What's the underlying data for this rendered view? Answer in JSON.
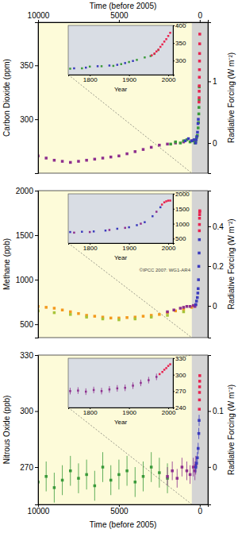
{
  "chart_data": [
    {
      "type": "scatter",
      "xlabel": "Time (before 2005)",
      "ylabel": "Carbon Dioxide (ppm)",
      "y2label": "Radiative Forcing (W m⁻²)",
      "xlim": [
        10000,
        -500
      ],
      "xticks": [
        10000,
        5000,
        0
      ],
      "ylim": [
        250,
        390
      ],
      "yticks": [
        300,
        350
      ],
      "y2lim": [
        -0.49,
        1.96
      ],
      "y2ticks": [
        0,
        1
      ],
      "series": [
        {
          "color": "#8e2f8e",
          "marker": "square",
          "x": [
            10000,
            9500,
            9000,
            8500,
            8000,
            7500,
            7000,
            6500,
            6000,
            5500,
            5000,
            4500,
            4000,
            3500,
            3000,
            2500,
            2000,
            1500,
            1000,
            500
          ],
          "values": [
            266,
            264,
            262,
            261,
            260,
            261,
            262,
            263,
            264,
            265,
            266,
            268,
            270,
            272,
            274,
            276,
            277,
            278,
            279,
            280
          ]
        },
        {
          "color": "#3a9a3a",
          "marker": "square",
          "x": [
            1800,
            1500,
            1200,
            1000,
            800,
            600,
            400,
            300,
            250,
            200,
            150,
            100,
            80,
            60,
            50,
            40,
            30
          ],
          "values": [
            277,
            279,
            278,
            280,
            281,
            279,
            280,
            278,
            279,
            283,
            285,
            292,
            297,
            305,
            311,
            318,
            330
          ]
        },
        {
          "color": "#3b3bbd",
          "marker": "square",
          "x": [
            900,
            700,
            500,
            350,
            255,
            220,
            180,
            140,
            110,
            90
          ],
          "values": [
            280,
            282,
            280,
            281,
            278,
            281,
            284,
            288,
            296,
            300
          ]
        },
        {
          "color": "#e8244f",
          "marker": "square",
          "x": [
            47,
            40,
            35,
            30,
            25,
            20,
            15,
            10,
            5,
            0
          ],
          "values": [
            316,
            320,
            326,
            331,
            339,
            346,
            354,
            361,
            370,
            379
          ]
        }
      ],
      "inset": {
        "type": "scatter",
        "xlabel": "Year",
        "xlim": [
          1745,
          2012
        ],
        "xticks": [
          1800,
          1900,
          2000
        ],
        "ylim": [
          260,
          400
        ],
        "yticks": [
          300,
          350,
          400
        ],
        "series": [
          {
            "color": "#3a9a3a",
            "marker": "square",
            "x": [
              1750,
              1780,
              1800,
              1830,
              1860,
              1880,
              1900,
              1920,
              1940,
              1955,
              1965,
              1975
            ],
            "values": [
              277,
              278,
              283,
              284,
              285,
              290,
              296,
              302,
              309,
              313,
              319,
              330
            ]
          },
          {
            "color": "#3b3bbd",
            "marker": "square",
            "x": [
              1760,
              1790,
              1820,
              1850,
              1870,
              1890,
              1910
            ],
            "values": [
              278,
              280,
              284,
              286,
              288,
              293,
              299
            ]
          },
          {
            "color": "#e8244f",
            "marker": "square",
            "x": [
              1958,
              1965,
              1970,
              1975,
              1980,
              1985,
              1990,
              1995,
              2000,
              2005
            ],
            "values": [
              315,
              320,
              326,
              331,
              339,
              346,
              354,
              361,
              370,
              379
            ]
          }
        ]
      }
    },
    {
      "type": "scatter",
      "ylabel": "Methane (ppb)",
      "y2label": "Radiative Forcing (W m⁻²)",
      "annotations": [
        "©IPCC 2007: WG1-AR4"
      ],
      "xlim": [
        10000,
        -500
      ],
      "ylim": [
        350,
        2000
      ],
      "yticks": [
        500,
        1000,
        1500,
        2000
      ],
      "y2lim": [
        -0.16,
        0.58
      ],
      "y2ticks": [
        0,
        0.2,
        0.4
      ],
      "series": [
        {
          "color": "#f39a1e",
          "marker": "square",
          "x": [
            10000,
            9500,
            9000,
            8500,
            8000,
            7500,
            7000,
            6500,
            6000,
            5500,
            5000,
            4500,
            4000,
            3500,
            3000,
            2500,
            2000,
            1500,
            1000,
            500
          ],
          "values": [
            700,
            690,
            680,
            660,
            640,
            620,
            600,
            590,
            580,
            570,
            570,
            575,
            580,
            590,
            600,
            610,
            630,
            650,
            670,
            690
          ]
        },
        {
          "color": "#a8c43a",
          "marker": "square",
          "x": [
            10000,
            9000,
            8000,
            7000,
            6000,
            5000,
            4000,
            3000,
            2000,
            1000
          ],
          "values": [
            650,
            630,
            610,
            580,
            560,
            550,
            560,
            580,
            600,
            640
          ]
        },
        {
          "color": "#8e2f8e",
          "marker": "square",
          "x": [
            2000,
            1600,
            1200,
            1000,
            800,
            600,
            400,
            300,
            250
          ],
          "values": [
            640,
            660,
            680,
            690,
            700,
            700,
            710,
            700,
            720
          ]
        },
        {
          "color": "#3b3bbd",
          "marker": "square",
          "x": [
            250,
            200,
            150,
            120,
            100,
            80,
            60,
            40,
            25
          ],
          "values": [
            720,
            760,
            800,
            850,
            900,
            1000,
            1150,
            1300,
            1450
          ]
        },
        {
          "color": "#e8244f",
          "marker": "square",
          "x": [
            25,
            20,
            15,
            10,
            5,
            0
          ],
          "values": [
            1550,
            1620,
            1690,
            1730,
            1760,
            1774
          ]
        }
      ],
      "inset": {
        "type": "scatter",
        "xlabel": "Year",
        "xlim": [
          1745,
          2012
        ],
        "xticks": [
          1800,
          1900,
          2000
        ],
        "ylim": [
          350,
          2000
        ],
        "yticks": [
          500,
          1000,
          1500,
          2000
        ],
        "series": [
          {
            "color": "#3b3bbd",
            "marker": "square",
            "x": [
              1750,
              1780,
              1810,
              1840,
              1870,
              1900,
              1920,
              1940,
              1960,
              1980
            ],
            "values": [
              720,
              730,
              740,
              770,
              830,
              880,
              950,
              1050,
              1250,
              1550
            ]
          },
          {
            "color": "#8e2f8e",
            "marker": "square",
            "x": [
              1760,
              1800,
              1850,
              1890,
              1930,
              1970
            ],
            "values": [
              700,
              720,
              790,
              860,
              1000,
              1400
            ]
          },
          {
            "color": "#e8244f",
            "marker": "square",
            "x": [
              1984,
              1990,
              1995,
              2000,
              2005
            ],
            "values": [
              1640,
              1715,
              1750,
              1772,
              1774
            ]
          }
        ]
      }
    },
    {
      "type": "scatter",
      "xlabel": "Time (before 2005)",
      "ylabel": "Nitrous Oxide (ppb)",
      "y2label": "Radiative Forcing (W m⁻²)",
      "xlim": [
        10000,
        -500
      ],
      "xticks": [
        10000,
        5000,
        0
      ],
      "ylim": [
        250,
        330
      ],
      "yticks": [
        270,
        300,
        330
      ],
      "y2lim": [
        -0.067,
        0.2
      ],
      "y2ticks": [
        0,
        0.1
      ],
      "series": [
        {
          "color": "#3a9a3a",
          "marker": "square",
          "x": [
            10000,
            9500,
            9000,
            8500,
            8000,
            7500,
            7000,
            6500,
            6000,
            5500,
            5000,
            4500,
            4000,
            3500,
            3000,
            2500,
            2000
          ],
          "values": [
            262,
            265,
            259,
            263,
            268,
            264,
            266,
            260,
            270,
            263,
            266,
            268,
            262,
            265,
            270,
            267,
            264
          ],
          "errors": [
            8,
            8,
            8,
            8,
            8,
            8,
            8,
            8,
            8,
            8,
            8,
            8,
            8,
            8,
            8,
            8,
            8
          ]
        },
        {
          "color": "#8e2f8e",
          "marker": "square",
          "x": [
            2000,
            1700,
            1400,
            1100,
            800,
            600,
            400,
            300,
            250
          ],
          "values": [
            265,
            268,
            264,
            270,
            268,
            266,
            270,
            268,
            271
          ],
          "errors": [
            5,
            5,
            5,
            5,
            5,
            5,
            5,
            5,
            5
          ]
        },
        {
          "color": "#3b3bbd",
          "marker": "square",
          "x": [
            250,
            200,
            150,
            100,
            60,
            40
          ],
          "values": [
            270,
            272,
            275,
            280,
            288,
            295
          ],
          "errors": [
            3,
            3,
            3,
            3,
            3,
            3
          ]
        },
        {
          "color": "#e8244f",
          "marker": "square",
          "x": [
            27,
            20,
            15,
            10,
            5,
            0
          ],
          "values": [
            301,
            306,
            310,
            313,
            316,
            319
          ]
        }
      ],
      "inset": {
        "type": "scatter",
        "xlabel": "Year",
        "xlim": [
          1745,
          2012
        ],
        "xticks": [
          1800,
          1900,
          2000
        ],
        "ylim": [
          240,
          330
        ],
        "yticks": [
          240,
          270,
          300,
          330
        ],
        "series": [
          {
            "color": "#8e2f8e",
            "marker": "square",
            "x": [
              1750,
              1770,
              1790,
              1810,
              1830,
              1850,
              1870,
              1890,
              1910,
              1930,
              1950,
              1970
            ],
            "values": [
              270,
              271,
              269,
              272,
              270,
              273,
              275,
              276,
              280,
              285,
              290,
              296
            ],
            "errors": [
              6,
              6,
              6,
              6,
              6,
              6,
              6,
              6,
              6,
              6,
              6,
              6
            ]
          },
          {
            "color": "#e8244f",
            "marker": "square",
            "x": [
              1978,
              1985,
              1990,
              1995,
              2000,
              2005
            ],
            "values": [
              301,
              305,
              309,
              312,
              316,
              319
            ]
          }
        ]
      }
    }
  ]
}
